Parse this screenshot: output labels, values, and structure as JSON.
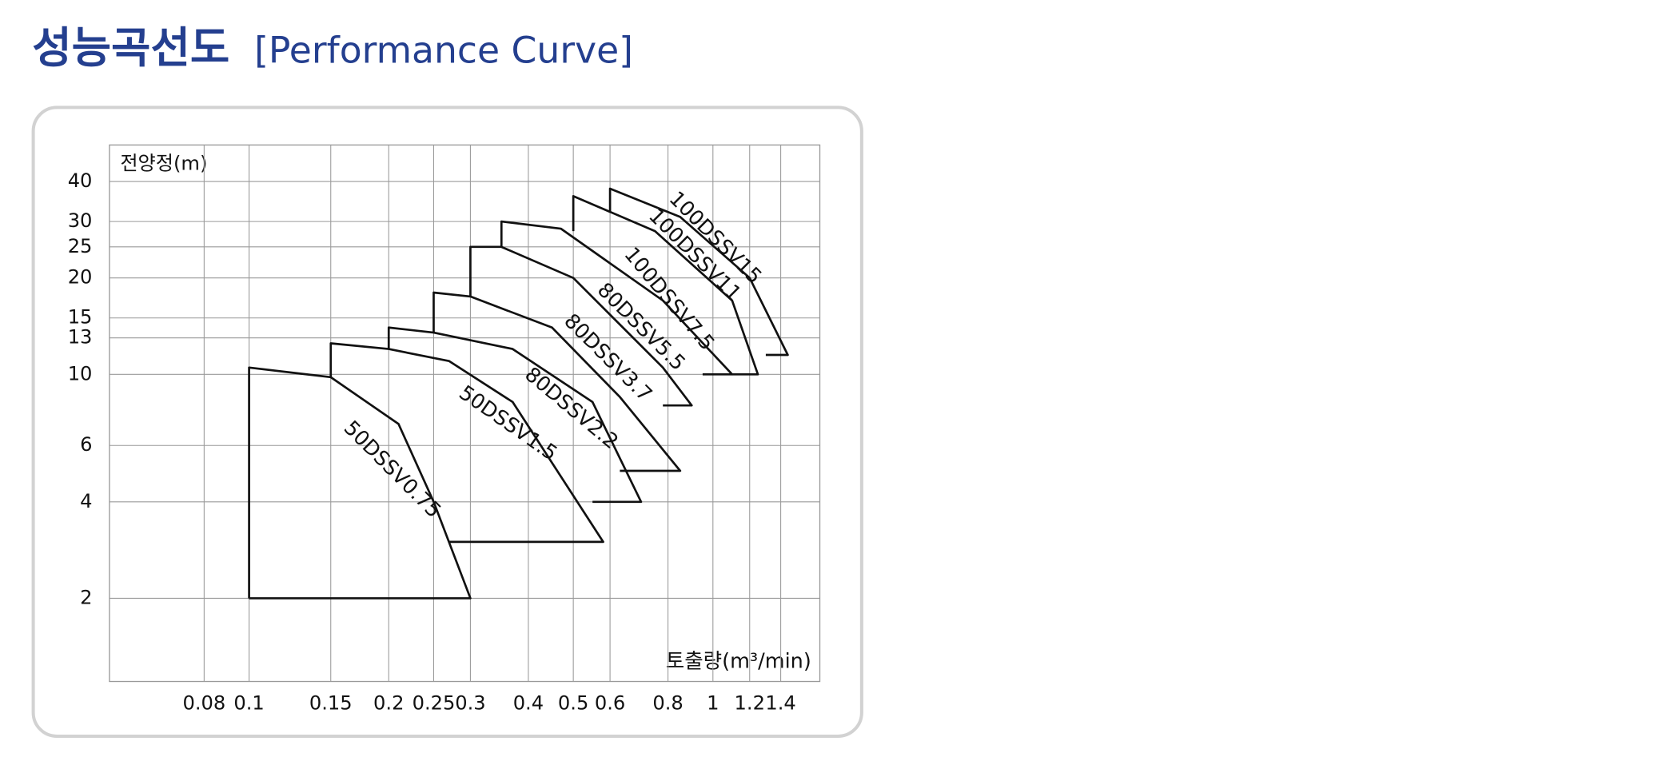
{
  "chart_data": {
    "type": "line",
    "title": "성능곡선도",
    "subtitle": "[Performance Curve]",
    "y_label": "전양정(m)",
    "x_label": "토출량(m³/min)",
    "x_scale": "log",
    "y_scale": "log",
    "grid": true,
    "color": "#111111",
    "xlim": [
      0.05,
      1.7
    ],
    "ylim": [
      1.1,
      52
    ],
    "xticks": [
      0.08,
      0.1,
      0.15,
      0.2,
      0.25,
      0.3,
      0.4,
      0.5,
      0.6,
      0.8,
      1,
      1.2,
      1.4
    ],
    "yticks": [
      2,
      4,
      6,
      10,
      13,
      15,
      20,
      25,
      30,
      40
    ],
    "series": [
      {
        "name": "50DSSV0.75",
        "x": [
          0.1,
          0.1,
          0.15,
          0.21,
          0.25,
          0.3,
          0.1
        ],
        "values": [
          2,
          10.5,
          9.8,
          7,
          4,
          2,
          2
        ]
      },
      {
        "name": "50DSSV1.5",
        "x": [
          0.15,
          0.15,
          0.2,
          0.27,
          0.37,
          0.58,
          0.27
        ],
        "values": [
          9.8,
          12.5,
          12,
          11,
          8.2,
          3,
          3
        ]
      },
      {
        "name": "80DSSV2.2",
        "x": [
          0.2,
          0.2,
          0.25,
          0.37,
          0.55,
          0.7,
          0.55
        ],
        "values": [
          12,
          14,
          13.5,
          12,
          8.2,
          4,
          4
        ]
      },
      {
        "name": "80DSSV3.7",
        "x": [
          0.25,
          0.25,
          0.3,
          0.45,
          0.63,
          0.85,
          0.63
        ],
        "values": [
          13.5,
          18,
          17.5,
          14,
          8.5,
          5,
          5
        ]
      },
      {
        "name": "80DSSV5.5",
        "x": [
          0.3,
          0.3,
          0.35,
          0.5,
          0.78,
          0.9,
          0.78
        ],
        "values": [
          17.5,
          25,
          25,
          20,
          10.5,
          8,
          8
        ]
      },
      {
        "name": "100DSSV7.5",
        "x": [
          0.35,
          0.35,
          0.47,
          0.78,
          1.1,
          0.95
        ],
        "values": [
          25,
          30,
          28.5,
          17,
          10,
          10
        ]
      },
      {
        "name": "100DSSV11",
        "x": [
          0.5,
          0.5,
          0.75,
          1.1,
          1.25,
          1.1
        ],
        "values": [
          28,
          36,
          28,
          17,
          10,
          10
        ]
      },
      {
        "name": "100DSSV15",
        "x": [
          0.6,
          0.6,
          0.85,
          1.2,
          1.45,
          1.3
        ],
        "values": [
          32,
          38,
          31,
          20,
          11.5,
          11.5
        ]
      }
    ]
  }
}
